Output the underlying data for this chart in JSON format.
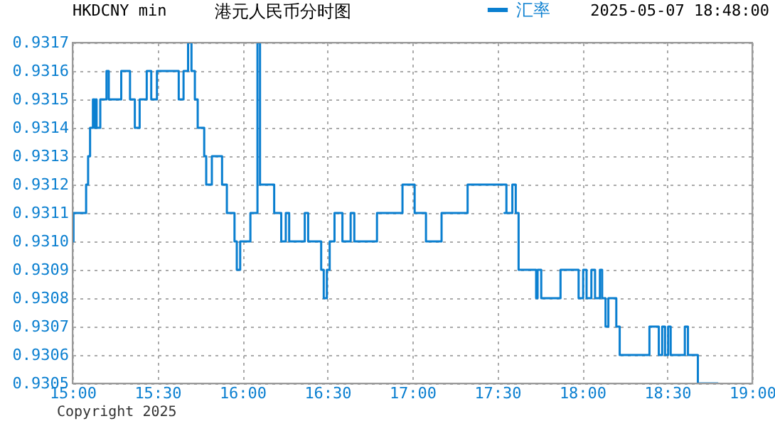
{
  "chart_data": {
    "type": "step",
    "title": "港元人民币分时图",
    "subtitle": "HKDCNY min",
    "annotations": [
      "2025-05-07 18:48:00",
      "Copyright 2025"
    ],
    "x": [
      15.0,
      15.0056,
      15.08,
      15.0917,
      15.1033,
      15.12,
      15.13,
      15.1367,
      15.1417,
      15.1633,
      15.2,
      15.2133,
      15.2867,
      15.3383,
      15.3667,
      15.395,
      15.4367,
      15.4633,
      15.4967,
      15.625,
      15.6533,
      15.68,
      15.7,
      15.72,
      15.7367,
      15.775,
      15.7867,
      15.82,
      15.88,
      15.9083,
      15.9533,
      15.9667,
      15.9867,
      16.0467,
      16.0883,
      16.1033,
      16.1867,
      16.2283,
      16.255,
      16.275,
      16.3667,
      16.3867,
      16.4633,
      16.4783,
      16.4967,
      16.5133,
      16.5417,
      16.5883,
      16.6367,
      16.6583,
      16.7917,
      16.9417,
      17.0133,
      17.08,
      17.1717,
      17.325,
      17.5533,
      17.5417,
      17.5883,
      17.6083,
      17.625,
      17.7283,
      17.7367,
      17.7583,
      17.8717,
      17.9783,
      18.005,
      18.025,
      18.0533,
      18.075,
      18.1033,
      18.1167,
      18.1367,
      18.1533,
      18.2,
      18.22,
      18.395,
      18.45,
      18.47,
      18.4867,
      18.505,
      18.52,
      18.6033,
      18.6217,
      18.68,
      18.775,
      18.8
    ],
    "series": [
      {
        "name": "汇率",
        "color": "#0a7fd0",
        "values": [
          0.931,
          0.9311,
          0.9312,
          0.9313,
          0.9314,
          0.9315,
          0.9314,
          0.9315,
          0.9314,
          0.9315,
          0.9316,
          0.9315,
          0.9316,
          0.9315,
          0.9314,
          0.9315,
          0.9316,
          0.9315,
          0.9316,
          0.9315,
          0.9316,
          0.9317,
          0.9316,
          0.9315,
          0.9314,
          0.9313,
          0.9312,
          0.9313,
          0.9312,
          0.9311,
          0.931,
          0.9309,
          0.931,
          0.9311,
          0.9317,
          0.9312,
          0.9311,
          0.931,
          0.9311,
          0.931,
          0.9311,
          0.931,
          0.9309,
          0.9308,
          0.9309,
          0.931,
          0.9311,
          0.931,
          0.9311,
          0.931,
          0.9311,
          0.9312,
          0.9311,
          0.931,
          0.9311,
          0.9312,
          0.9311,
          0.9311,
          0.9312,
          0.9311,
          0.9309,
          0.9308,
          0.9309,
          0.9308,
          0.9309,
          0.9308,
          0.9309,
          0.9308,
          0.9309,
          0.9308,
          0.9309,
          0.9308,
          0.9307,
          0.9308,
          0.9307,
          0.9306,
          0.9307,
          0.9306,
          0.9307,
          0.9306,
          0.9307,
          0.9306,
          0.9307,
          0.9306,
          0.9305,
          0.9305,
          0.9305
        ]
      }
    ],
    "xlim": [
      15,
      19
    ],
    "xticks": [
      {
        "value": 15,
        "label": "15:00"
      },
      {
        "value": 15.5,
        "label": "15:30"
      },
      {
        "value": 16,
        "label": "16:00"
      },
      {
        "value": 16.5,
        "label": "16:30"
      },
      {
        "value": 17,
        "label": "17:00"
      },
      {
        "value": 17.5,
        "label": "17:30"
      },
      {
        "value": 18,
        "label": "18:00"
      },
      {
        "value": 18.5,
        "label": "18:30"
      },
      {
        "value": 19,
        "label": "19:00"
      }
    ],
    "ylim": [
      0.9305,
      0.9317
    ],
    "yticks": [
      0.9305,
      0.9306,
      0.9307,
      0.9308,
      0.9309,
      {
        "value": 0.931,
        "label": "0.9310"
      },
      0.9311,
      0.9312,
      0.9313,
      0.9314,
      0.9315,
      0.9316,
      0.9317
    ],
    "grid": true,
    "legend": "top",
    "marker": "none",
    "line_style": "solid"
  }
}
